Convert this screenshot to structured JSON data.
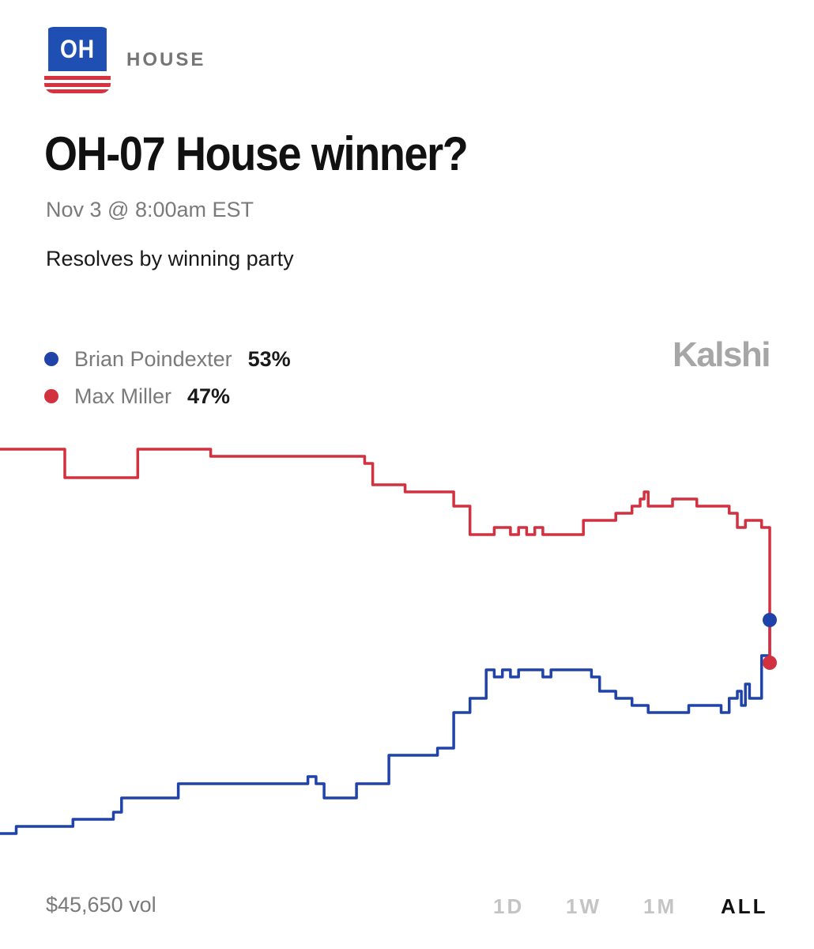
{
  "header": {
    "badge_text": "OH",
    "category": "HOUSE",
    "title": "OH-07 House winner?",
    "date": "Nov 3 @ 8:00am EST",
    "rules": "Resolves by winning party",
    "brand": "Kalshi"
  },
  "colors": {
    "blue": "#1f43a8",
    "red": "#d2313f",
    "badge_blue": "#1f4fb3",
    "badge_red": "#d7323e"
  },
  "chart_data": {
    "type": "line",
    "ylim": [
      0,
      100
    ],
    "grid": false,
    "legend_placement": "top-left",
    "series": [
      {
        "name": "Brian Poindexter",
        "label": "53%",
        "color": "#1f43a8",
        "points": [
          [
            0,
            23
          ],
          [
            2,
            23
          ],
          [
            2,
            24
          ],
          [
            9,
            24
          ],
          [
            9,
            25
          ],
          [
            14,
            25
          ],
          [
            14,
            26
          ],
          [
            15,
            26
          ],
          [
            15,
            28
          ],
          [
            22,
            28
          ],
          [
            22,
            30
          ],
          [
            38,
            30
          ],
          [
            38,
            31
          ],
          [
            39,
            31
          ],
          [
            39,
            30
          ],
          [
            40,
            30
          ],
          [
            40,
            28
          ],
          [
            44,
            28
          ],
          [
            44,
            30
          ],
          [
            48,
            30
          ],
          [
            48,
            34
          ],
          [
            54,
            34
          ],
          [
            54,
            35
          ],
          [
            56,
            35
          ],
          [
            56,
            40
          ],
          [
            58,
            40
          ],
          [
            58,
            42
          ],
          [
            60,
            42
          ],
          [
            60,
            46
          ],
          [
            61,
            46
          ],
          [
            61,
            45
          ],
          [
            62,
            45
          ],
          [
            62,
            46
          ],
          [
            63,
            46
          ],
          [
            63,
            45
          ],
          [
            64,
            45
          ],
          [
            64,
            46
          ],
          [
            67,
            46
          ],
          [
            67,
            45
          ],
          [
            68,
            45
          ],
          [
            68,
            46
          ],
          [
            73,
            46
          ],
          [
            73,
            45
          ],
          [
            74,
            45
          ],
          [
            74,
            43
          ],
          [
            76,
            43
          ],
          [
            76,
            42
          ],
          [
            78,
            42
          ],
          [
            78,
            41
          ],
          [
            80,
            41
          ],
          [
            80,
            40
          ],
          [
            85,
            40
          ],
          [
            85,
            41
          ],
          [
            89,
            41
          ],
          [
            89,
            40
          ],
          [
            90,
            40
          ],
          [
            90,
            42
          ],
          [
            91,
            42
          ],
          [
            91,
            43
          ],
          [
            91.5,
            43
          ],
          [
            91.5,
            41
          ],
          [
            92,
            41
          ],
          [
            92,
            44
          ],
          [
            92.5,
            44
          ],
          [
            92.5,
            42
          ],
          [
            94,
            42
          ],
          [
            94,
            48
          ],
          [
            95,
            48
          ],
          [
            95,
            53
          ]
        ]
      },
      {
        "name": "Max Miller",
        "label": "47%",
        "color": "#d2313f",
        "points": [
          [
            0,
            77
          ],
          [
            8,
            77
          ],
          [
            8,
            73
          ],
          [
            17,
            73
          ],
          [
            17,
            77
          ],
          [
            26,
            77
          ],
          [
            26,
            76
          ],
          [
            45,
            76
          ],
          [
            45,
            75
          ],
          [
            46,
            75
          ],
          [
            46,
            72
          ],
          [
            50,
            72
          ],
          [
            50,
            71
          ],
          [
            56,
            71
          ],
          [
            56,
            69
          ],
          [
            58,
            69
          ],
          [
            58,
            65
          ],
          [
            61,
            65
          ],
          [
            61,
            66
          ],
          [
            63,
            66
          ],
          [
            63,
            65
          ],
          [
            64,
            65
          ],
          [
            64,
            66
          ],
          [
            65,
            66
          ],
          [
            65,
            65
          ],
          [
            66,
            65
          ],
          [
            66,
            66
          ],
          [
            67,
            66
          ],
          [
            67,
            65
          ],
          [
            72,
            65
          ],
          [
            72,
            67
          ],
          [
            76,
            67
          ],
          [
            76,
            68
          ],
          [
            78,
            68
          ],
          [
            78,
            69
          ],
          [
            79,
            69
          ],
          [
            79,
            70
          ],
          [
            79.5,
            70
          ],
          [
            79.5,
            71
          ],
          [
            80,
            71
          ],
          [
            80,
            69
          ],
          [
            83,
            69
          ],
          [
            83,
            70
          ],
          [
            86,
            70
          ],
          [
            86,
            69
          ],
          [
            90,
            69
          ],
          [
            90,
            68
          ],
          [
            91,
            68
          ],
          [
            91,
            66
          ],
          [
            92,
            66
          ],
          [
            92,
            67
          ],
          [
            94,
            67
          ],
          [
            94,
            66
          ],
          [
            95,
            66
          ],
          [
            95,
            47
          ]
        ]
      }
    ]
  },
  "footer": {
    "volume": "$45,650 vol",
    "ranges": [
      "1D",
      "1W",
      "1M",
      "ALL"
    ],
    "active_range": "ALL"
  }
}
